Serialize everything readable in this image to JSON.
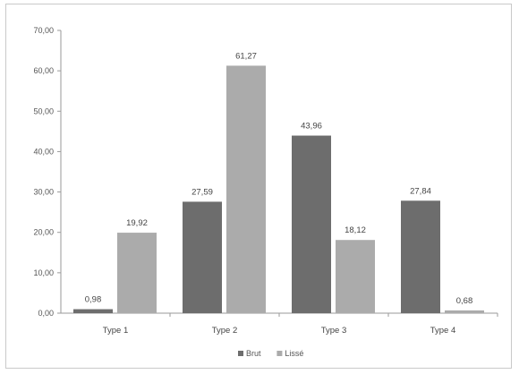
{
  "chart_data": {
    "type": "bar",
    "categories": [
      "Type 1",
      "Type 2",
      "Type 3",
      "Type 4"
    ],
    "series": [
      {
        "name": "Brut",
        "color": "#6d6d6d",
        "values": [
          0.98,
          27.59,
          43.96,
          27.84
        ],
        "labels": [
          "0,98",
          "27,59",
          "43,96",
          "27,84"
        ]
      },
      {
        "name": "Lissé",
        "color": "#ababab",
        "values": [
          19.92,
          61.27,
          18.12,
          0.68
        ],
        "labels": [
          "19,92",
          "61,27",
          "18,12",
          "0,68"
        ]
      }
    ],
    "ylim": [
      0,
      70
    ],
    "yticks": [
      0,
      10,
      20,
      30,
      40,
      50,
      60,
      70
    ],
    "ytick_labels": [
      "0,00",
      "10,00",
      "20,00",
      "30,00",
      "40,00",
      "50,00",
      "60,00",
      "70,00"
    ],
    "title": "",
    "xlabel": "",
    "ylabel": "",
    "grid": false,
    "legend_position": "bottom-center"
  }
}
